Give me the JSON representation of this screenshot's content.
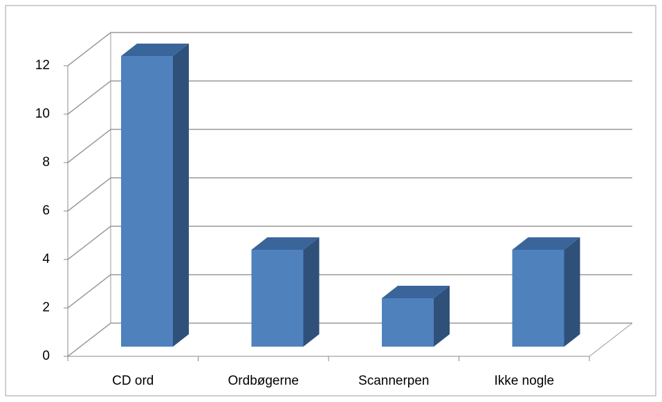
{
  "chart_data": {
    "type": "bar",
    "categories": [
      "CD ord",
      "Ordbøgerne",
      "Scannerpen",
      "Ikke nogle"
    ],
    "values": [
      12,
      4,
      2,
      4
    ],
    "color": "#4f81bd",
    "ylim": [
      0,
      12
    ],
    "yticks": [
      0,
      2,
      4,
      6,
      8,
      10,
      12
    ],
    "grid": true
  }
}
